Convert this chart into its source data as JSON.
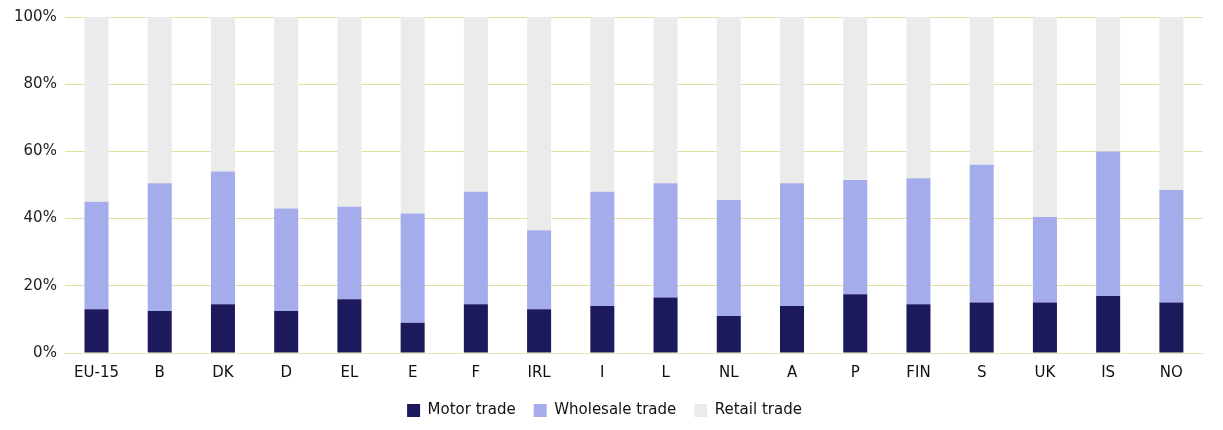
{
  "chart_data": {
    "type": "bar",
    "stacked": true,
    "categories": [
      "EU-15",
      "B",
      "DK",
      "D",
      "EL",
      "E",
      "F",
      "IRL",
      "I",
      "L",
      "NL",
      "A",
      "P",
      "FIN",
      "S",
      "UK",
      "IS",
      "NO"
    ],
    "series": [
      {
        "name": "Motor trade",
        "color": "#1c1a5c",
        "values": [
          13,
          12.5,
          14.5,
          12.5,
          16,
          9,
          14.5,
          13,
          14,
          16.5,
          11,
          14,
          17.5,
          14.5,
          15,
          15,
          17,
          15
        ]
      },
      {
        "name": "Wholesale trade",
        "color": "#a4aceb",
        "values": [
          32,
          38,
          39.5,
          30.5,
          27.5,
          32.5,
          33.5,
          23.5,
          34,
          34,
          34.5,
          36.5,
          34,
          37.5,
          41,
          25.5,
          43,
          33.5
        ]
      },
      {
        "name": "Retail trade",
        "color": "#ebebeb",
        "values": [
          55,
          49.5,
          46,
          57,
          56.5,
          58.5,
          52,
          63.5,
          52,
          49.5,
          54.5,
          49.5,
          48.5,
          48,
          44,
          59.5,
          40,
          51.5
        ]
      }
    ],
    "ylim": [
      0,
      100
    ],
    "yticks": [
      {
        "value": 0,
        "label": "0%"
      },
      {
        "value": 20,
        "label": "20%"
      },
      {
        "value": 40,
        "label": "40%"
      },
      {
        "value": 60,
        "label": "60%"
      },
      {
        "value": 80,
        "label": "80%"
      },
      {
        "value": 100,
        "label": "100%"
      }
    ],
    "grid": "y",
    "legend": "bottom"
  }
}
